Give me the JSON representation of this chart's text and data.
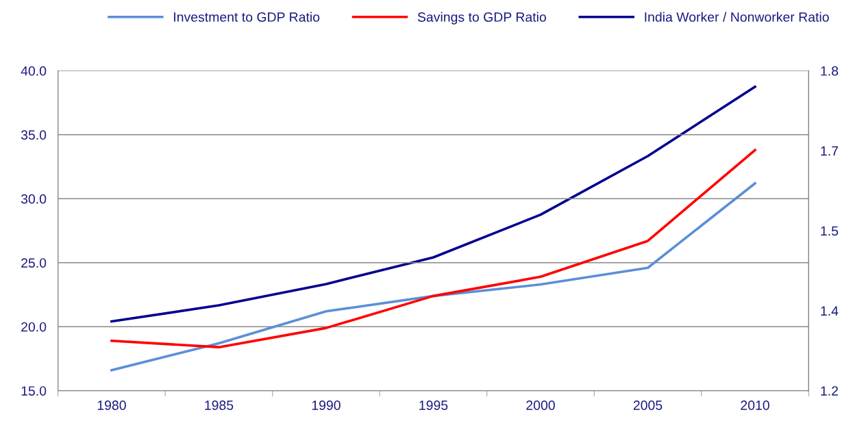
{
  "chart_data": {
    "type": "line",
    "categories": [
      "1980",
      "1985",
      "1990",
      "1995",
      "2000",
      "2005",
      "2010"
    ],
    "series": [
      {
        "name": "Investment to GDP Ratio",
        "color": "#5b8fd8",
        "values": [
          16.6,
          18.7,
          21.2,
          22.4,
          23.3,
          24.6,
          31.2
        ]
      },
      {
        "name": "Savings to GDP Ratio",
        "color": "#ff0000",
        "values": [
          18.9,
          18.4,
          19.9,
          22.4,
          23.9,
          26.7,
          33.8
        ]
      },
      {
        "name": "India Worker / Nonworker Ratio",
        "color": "#000090",
        "axis": "y2",
        "values": [
          1.33,
          1.36,
          1.4,
          1.45,
          1.53,
          1.64,
          1.77
        ]
      }
    ],
    "ylim": [
      15,
      40
    ],
    "yticks": [
      {
        "value": 15,
        "label": "15.0"
      },
      {
        "value": 20,
        "label": "20.0"
      },
      {
        "value": 25,
        "label": "25.0"
      },
      {
        "value": 30,
        "label": "30.0"
      },
      {
        "value": 35,
        "label": "35.0"
      },
      {
        "value": 40,
        "label": "40.0"
      }
    ],
    "y2lim": [
      1.2,
      1.8
    ],
    "y2ticks": [
      1.2,
      {
        "value": 1.35,
        "label": "1.4"
      },
      1.5,
      {
        "value": 1.65,
        "label": "1.7"
      },
      1.8
    ],
    "grid": "y",
    "legend": "top",
    "marker": "none",
    "line_style": "solid"
  }
}
